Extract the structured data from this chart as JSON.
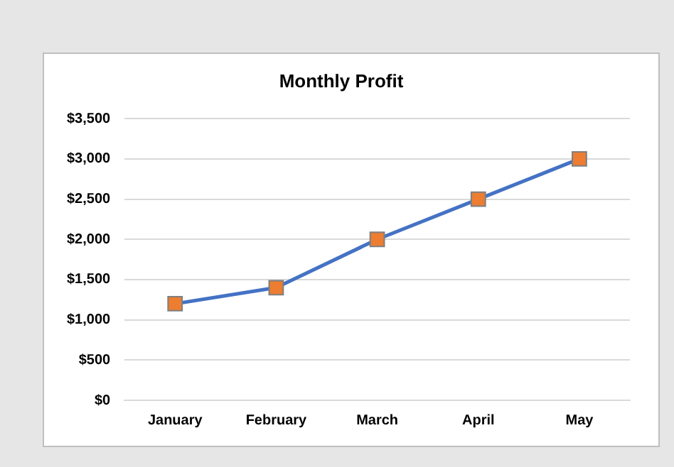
{
  "chart_data": {
    "type": "line",
    "title": "Monthly Profit",
    "categories": [
      "January",
      "February",
      "March",
      "April",
      "May"
    ],
    "series": [
      {
        "color": "#4472c4",
        "colors": [
          "#ed7d31",
          "#ed7d31",
          "#ed7d31",
          "#ed7d31",
          "#ed7d31"
        ],
        "values": [
          1200,
          1400,
          2000,
          2500,
          3000
        ]
      }
    ],
    "ylim": [
      0,
      3500
    ],
    "yticks": [
      {
        "value": 0,
        "label": "$0"
      },
      {
        "value": 500,
        "label": "$500"
      },
      {
        "value": 1000,
        "label": "$1,000"
      },
      {
        "value": 1500,
        "label": "$1,500"
      },
      {
        "value": 2000,
        "label": "$2,000"
      },
      {
        "value": 2500,
        "label": "$2,500"
      },
      {
        "value": 3000,
        "label": "$3,000"
      },
      {
        "value": 3500,
        "label": "$3,500"
      }
    ],
    "grid": "y",
    "legend": false,
    "marker": "square",
    "line_style": "solid"
  }
}
